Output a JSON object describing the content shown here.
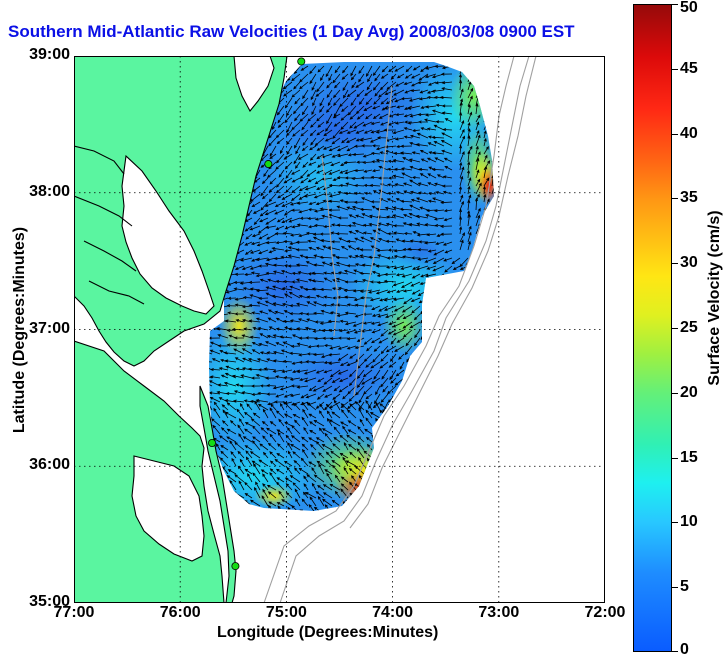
{
  "title": "Southern Mid-Atlantic Raw Velocities (1 Day Avg) 2008/03/08 0900 EST",
  "map": {
    "xlabel": "Longitude (Degrees:Minutes)",
    "ylabel": "Latitude (Degrees:Minutes)",
    "lon_range": [
      -77,
      -72
    ],
    "lat_range": [
      35,
      39
    ],
    "x_ticks": [
      "77:00",
      "76:00",
      "75:00",
      "74:00",
      "73:00",
      "72:00"
    ],
    "y_ticks": [
      "39:00",
      "38:00",
      "37:00",
      "36:00",
      "35:00"
    ],
    "grid": "dotted",
    "colors": {
      "land": "#5af5a0",
      "water": "#ffffff",
      "coastline": "#000000",
      "bathymetry": "#a0a0a0",
      "station": "#14dc14",
      "vectors": "#000000",
      "title": "#0b10e6"
    },
    "stations": [
      {
        "lon": -74.86,
        "lat": 38.96
      },
      {
        "lon": -75.17,
        "lat": 38.21
      },
      {
        "lon": -75.7,
        "lat": 36.17
      },
      {
        "lon": -75.48,
        "lat": 35.27
      }
    ]
  },
  "colorbar": {
    "label": "Surface Velocity (cm/s)",
    "min": 0,
    "max": 50,
    "ticks": [
      "0",
      "5",
      "10",
      "15",
      "20",
      "25",
      "30",
      "35",
      "40",
      "45",
      "50"
    ]
  }
}
